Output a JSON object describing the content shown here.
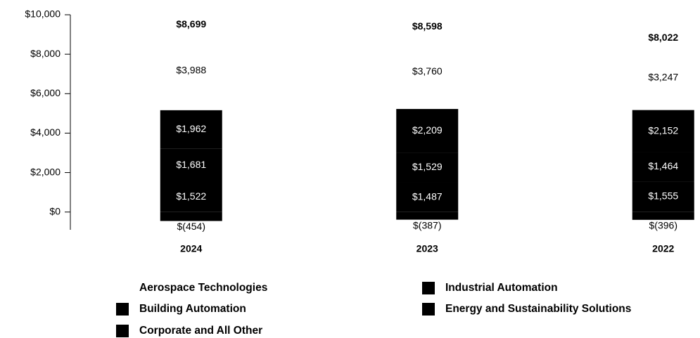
{
  "chart_data": {
    "type": "stacked_bar",
    "categories": [
      "2024",
      "2023",
      "2022"
    ],
    "series": [
      {
        "name": "Aerospace Technologies",
        "color": "#ffffff",
        "values": [
          3988,
          3760,
          3247
        ],
        "value_labels": [
          "$3,988",
          "$3,760",
          "$3,247"
        ]
      },
      {
        "name": "Industrial Automation",
        "color": "#000000",
        "values": [
          1962,
          2209,
          2152
        ],
        "value_labels": [
          "$1,962",
          "$2,209",
          "$2,152"
        ]
      },
      {
        "name": "Building Automation",
        "color": "#000000",
        "values": [
          1681,
          1529,
          1464
        ],
        "value_labels": [
          "$1,681",
          "$1,529",
          "$1,464"
        ]
      },
      {
        "name": "Energy and Sustainability Solutions",
        "color": "#000000",
        "values": [
          1522,
          1487,
          1555
        ],
        "value_labels": [
          "$1,522",
          "$1,487",
          "$1,555"
        ]
      },
      {
        "name": "Corporate and All Other",
        "color": "#000000",
        "values": [
          -454,
          -387,
          -396
        ],
        "value_labels": [
          "$(454)",
          "$(387)",
          "$(396)"
        ]
      }
    ],
    "totals": [
      8699,
      8598,
      8022
    ],
    "total_labels": [
      "$8,699",
      "$8,598",
      "$8,022"
    ],
    "ylim": [
      -900,
      10000
    ],
    "yticks": [
      {
        "value": 0,
        "label": "$0"
      },
      {
        "value": 2000,
        "label": "$2,000"
      },
      {
        "value": 4000,
        "label": "$4,000"
      },
      {
        "value": 6000,
        "label": "$6,000"
      },
      {
        "value": 8000,
        "label": "$8,000"
      },
      {
        "value": 10000,
        "label": "$10,000"
      }
    ]
  }
}
